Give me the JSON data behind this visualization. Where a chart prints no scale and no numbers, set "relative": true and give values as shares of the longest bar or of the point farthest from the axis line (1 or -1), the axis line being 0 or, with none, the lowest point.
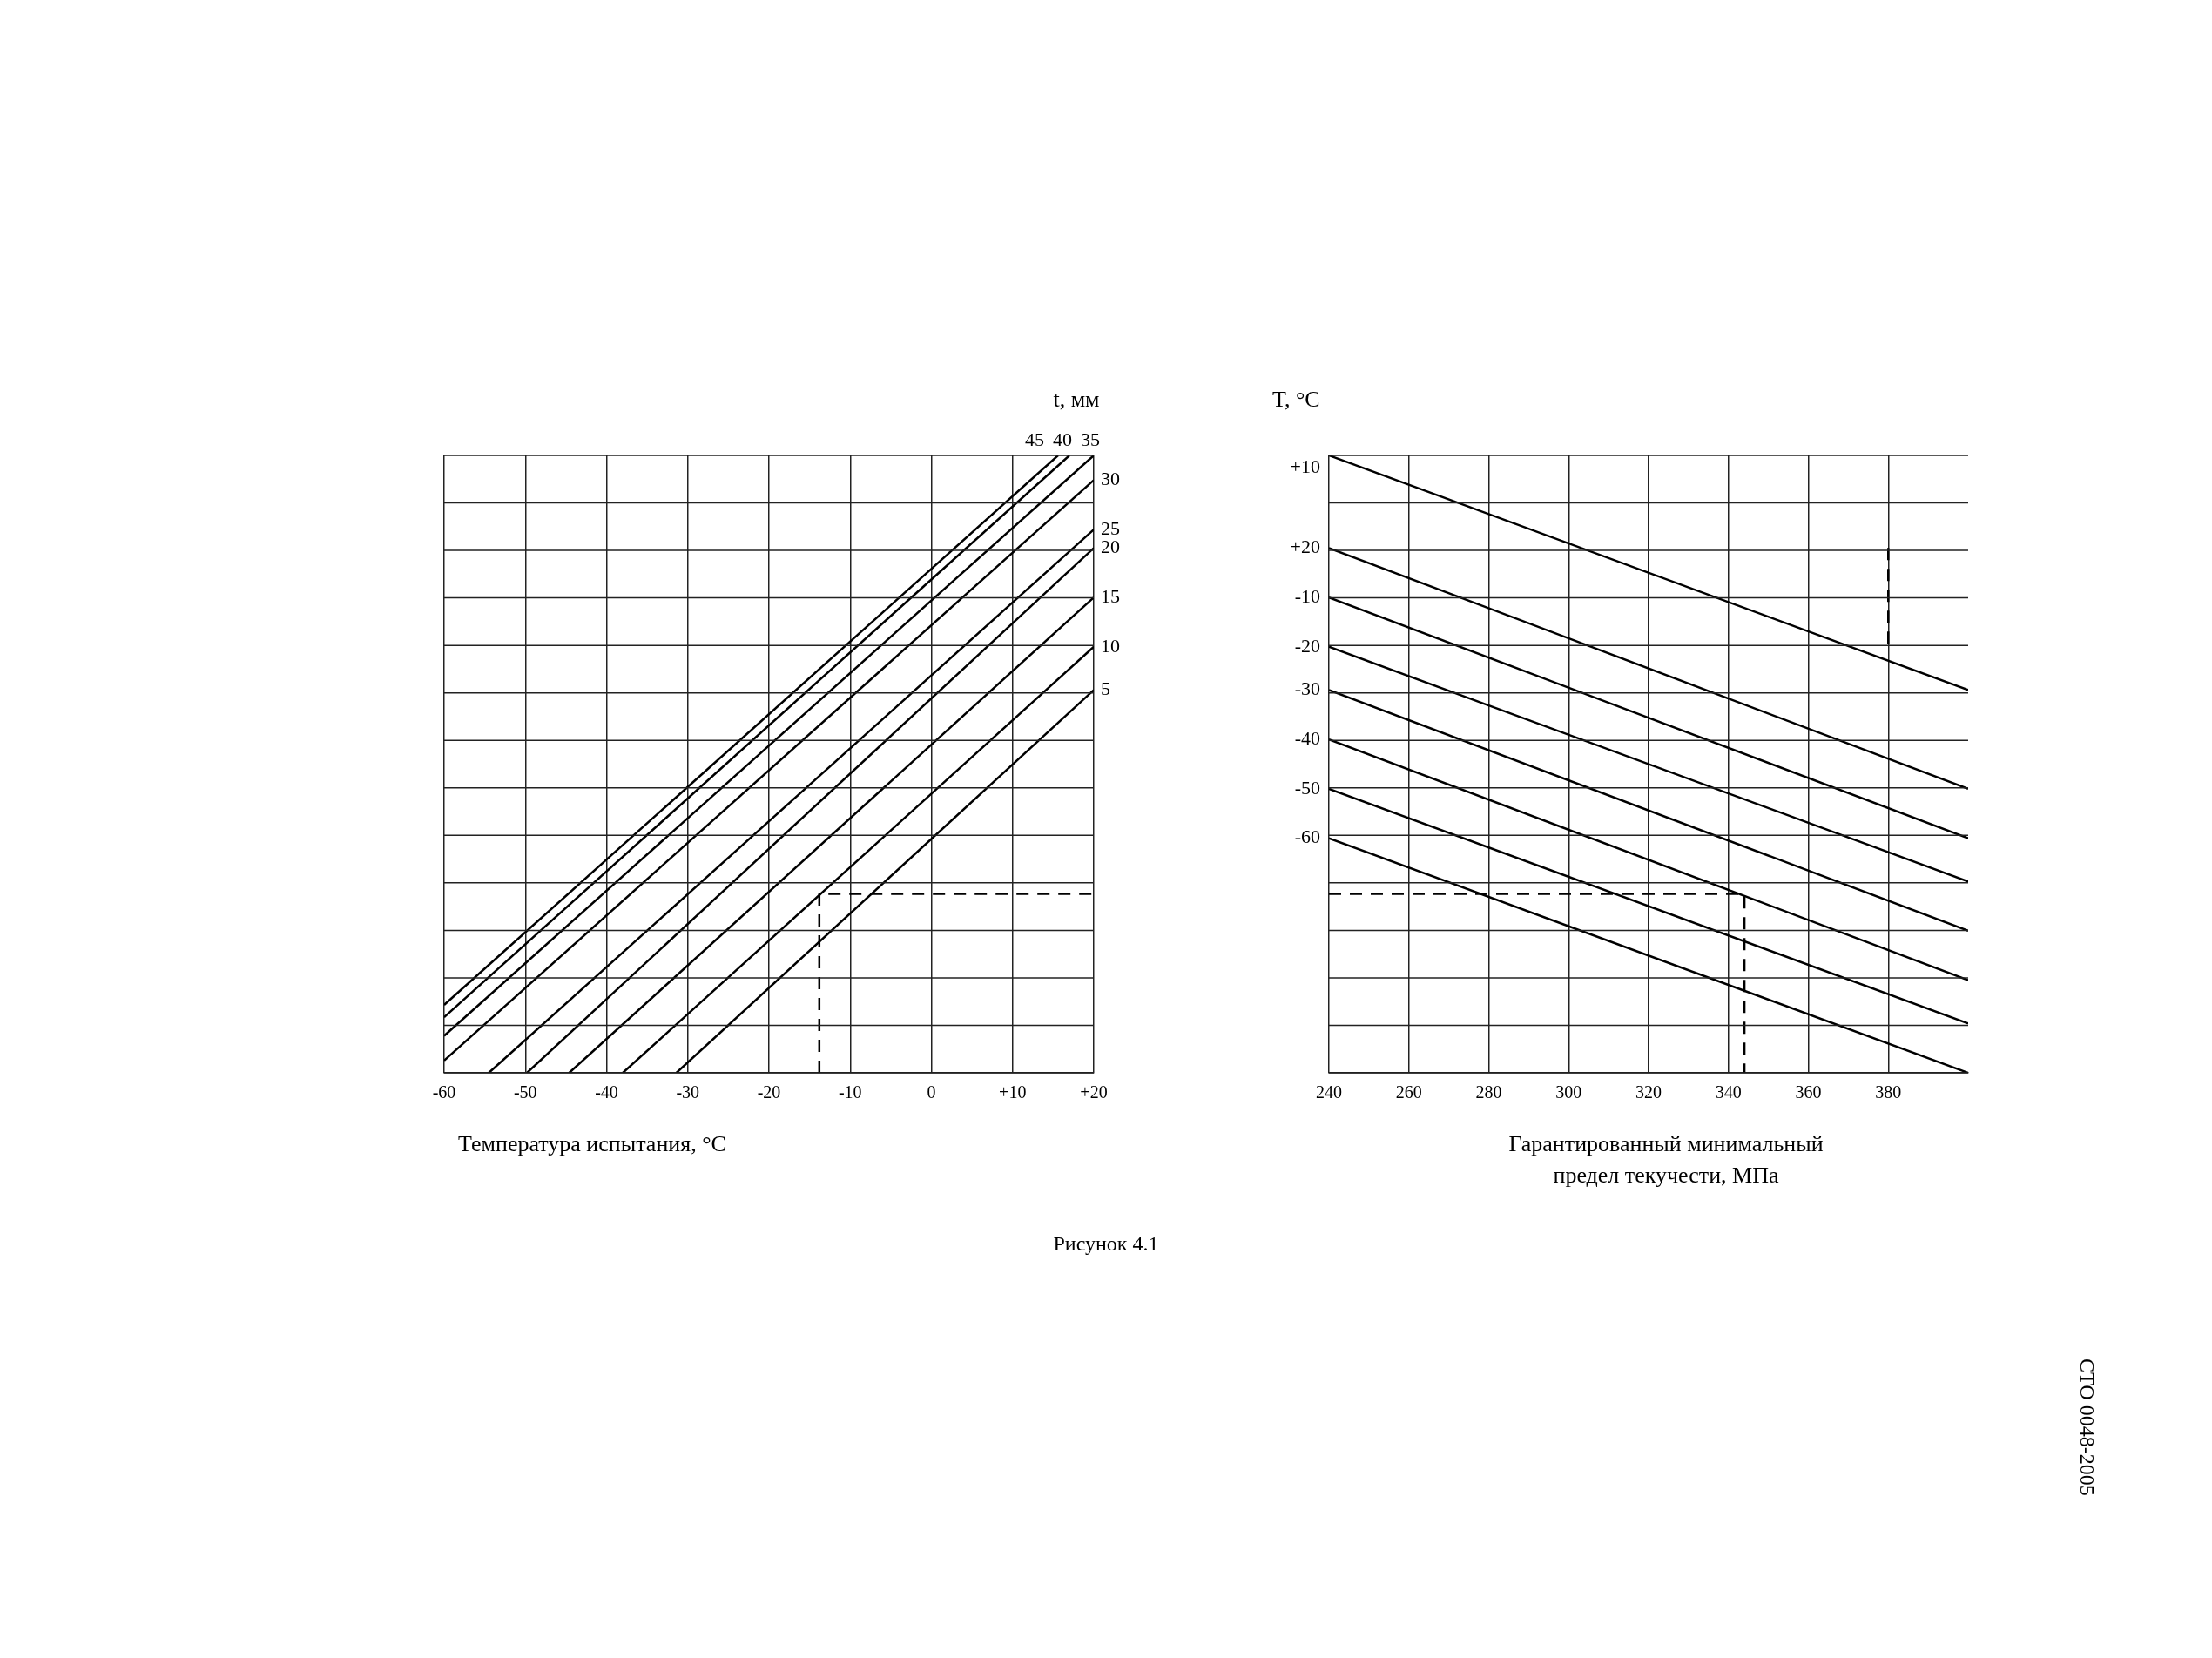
{
  "chart_data": [
    {
      "type": "line",
      "relative": true,
      "xlabel": "Температура испытания, °С",
      "legend_title": "t, мм",
      "xlim": [
        -60,
        20
      ],
      "xticks": [
        -60,
        -50,
        -40,
        -30,
        -20,
        -10,
        0,
        {
          "value": 10,
          "label": "+10"
        },
        {
          "value": 20,
          "label": "+20"
        }
      ],
      "grid": true,
      "legend": false,
      "marker": "none",
      "annotations": [
        "Рисунок 4.1",
        "СТО 0048-2005"
      ],
      "series": [
        {
          "name": "5",
          "color": "#000000",
          "x": [
            -31.4,
            20
          ],
          "values": [
            0,
            0.62
          ]
        },
        {
          "name": "10",
          "color": "#000000",
          "x": [
            -38,
            20
          ],
          "values": [
            0,
            0.69
          ]
        },
        {
          "name": "15",
          "color": "#000000",
          "x": [
            -44.6,
            20
          ],
          "values": [
            0,
            0.77
          ]
        },
        {
          "name": "20",
          "color": "#000000",
          "x": [
            -49.8,
            20
          ],
          "values": [
            0,
            0.85
          ]
        },
        {
          "name": "25",
          "color": "#000000",
          "x": [
            -54.5,
            20
          ],
          "values": [
            0,
            0.88
          ]
        },
        {
          "name": "30",
          "color": "#000000",
          "x": [
            -60,
            20
          ],
          "values": [
            0.02,
            0.96
          ]
        },
        {
          "name": "35",
          "color": "#000000",
          "x": [
            -60,
            20
          ],
          "values": [
            0.06,
            1
          ]
        },
        {
          "name": "40",
          "color": "#000000",
          "x": [
            -60,
            17
          ],
          "values": [
            0.09,
            1
          ]
        },
        {
          "name": "45",
          "color": "#000000",
          "x": [
            -60,
            15.6
          ],
          "values": [
            0.11,
            1
          ]
        },
        {
          "color": "#000000",
          "line_style": "dashed",
          "x": [
            -13.8,
            -13.8,
            20
          ],
          "values": [
            0,
            0.29,
            0.29
          ]
        }
      ]
    },
    {
      "type": "line",
      "relative": true,
      "xlabel": "Гарантированный минимальный предел текучести, МПа",
      "legend_title": "T, °C",
      "xlim": [
        240,
        400
      ],
      "xticks": [
        240,
        260,
        280,
        300,
        320,
        340,
        360,
        380
      ],
      "grid": true,
      "legend": false,
      "marker": "none",
      "series": [
        {
          "name": "+10",
          "color": "#000000",
          "x": [
            240,
            400
          ],
          "values": [
            1,
            0.62
          ]
        },
        {
          "name": "+20",
          "color": "#000000",
          "x": [
            240,
            400
          ],
          "values": [
            0.85,
            0.46
          ]
        },
        {
          "name": "-10",
          "color": "#000000",
          "x": [
            240,
            400
          ],
          "values": [
            0.77,
            0.38
          ]
        },
        {
          "name": "-20",
          "color": "#000000",
          "x": [
            240,
            400
          ],
          "values": [
            0.69,
            0.31
          ]
        },
        {
          "name": "-30",
          "color": "#000000",
          "x": [
            240,
            400
          ],
          "values": [
            0.62,
            0.23
          ]
        },
        {
          "name": "-40",
          "color": "#000000",
          "x": [
            240,
            400
          ],
          "values": [
            0.54,
            0.15
          ]
        },
        {
          "name": "-50",
          "color": "#000000",
          "x": [
            240,
            400
          ],
          "values": [
            0.46,
            0.08
          ]
        },
        {
          "name": "-60",
          "color": "#000000",
          "x": [
            240,
            400
          ],
          "values": [
            0.38,
            0
          ]
        },
        {
          "color": "#000000",
          "line_style": "dashed",
          "x": [
            240,
            344,
            344
          ],
          "values": [
            0.29,
            0.29,
            0
          ]
        },
        {
          "color": "#000000",
          "line_style": "dashed",
          "x": [
            380,
            380
          ],
          "values": [
            0.85,
            0.69
          ]
        }
      ]
    }
  ]
}
